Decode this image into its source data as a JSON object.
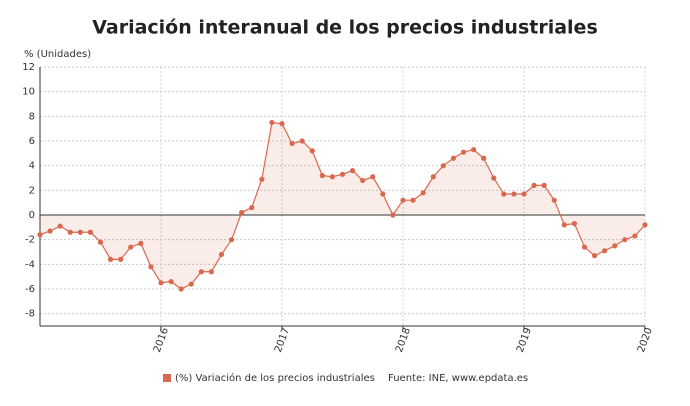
{
  "chart_data": {
    "type": "line",
    "title": "Variación interanual de los precios industriales",
    "y_label": "% (Unidades)",
    "source": "Fuente: INE, www.epdata.es",
    "categories": [
      null,
      null,
      null,
      null,
      null,
      null,
      null,
      null,
      null,
      null,
      null,
      null,
      "2016",
      null,
      null,
      null,
      null,
      null,
      null,
      null,
      null,
      null,
      null,
      null,
      "2017",
      null,
      null,
      null,
      null,
      null,
      null,
      null,
      null,
      null,
      null,
      null,
      "2018",
      null,
      null,
      null,
      null,
      null,
      null,
      null,
      null,
      null,
      null,
      null,
      "2019",
      null,
      null,
      null,
      null,
      null,
      null,
      null,
      null,
      null,
      null,
      null,
      "2020"
    ],
    "series": [
      {
        "name": "(%) Variación de los precios industriales",
        "color": "#d9694e",
        "values": [
          -1.6,
          -1.3,
          -0.9,
          -1.4,
          -1.4,
          -1.4,
          -2.2,
          -3.6,
          -3.6,
          -2.6,
          -2.3,
          -4.2,
          -5.5,
          -5.4,
          -6.0,
          -5.6,
          -4.6,
          -4.6,
          -3.2,
          -2.0,
          0.2,
          0.6,
          2.9,
          7.5,
          7.4,
          5.8,
          6.0,
          5.2,
          3.2,
          3.1,
          3.3,
          3.6,
          2.8,
          3.1,
          1.7,
          0.0,
          1.2,
          1.2,
          1.8,
          3.1,
          4.0,
          4.6,
          5.1,
          5.3,
          4.6,
          3.0,
          1.7,
          1.7,
          1.7,
          2.4,
          2.4,
          1.2,
          -0.8,
          -0.7,
          -2.6,
          -3.3,
          -2.9,
          -2.5,
          -2.0,
          -1.7,
          -0.8
        ]
      }
    ],
    "ylim": [
      -9,
      12
    ],
    "yticks": [
      -8,
      -6,
      -4,
      -2,
      0,
      2,
      4,
      6,
      8,
      10,
      12
    ],
    "grid": true
  }
}
